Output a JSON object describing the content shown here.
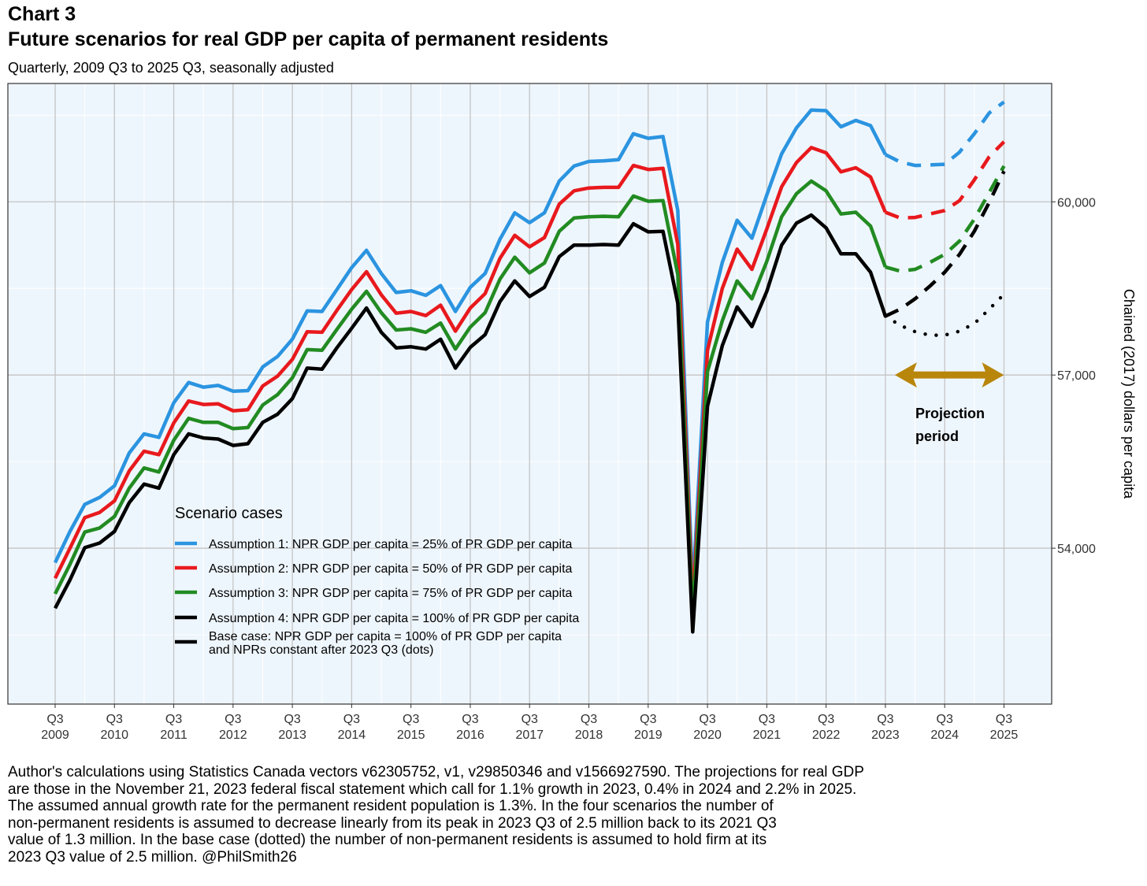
{
  "chart_label": "Chart 3",
  "title": "Future scenarios for real GDP per capita of permanent residents",
  "subtitle": "Quarterly, 2009 Q3 to 2025 Q3, seasonally adjusted",
  "caption": [
    "Author's calculations using Statistics Canada vectors v62305752, v1, v29850346 and v1566927590. The projections for real GDP",
    "are those in the November 21, 2023 federal fiscal statement which call for 1.1% growth in 2023, 0.4% in 2024 and 2.2% in 2025.",
    "The assumed annual growth rate for the permanent resident population is 1.3%. In the four scenarios the number of",
    "non-permanent residents is assumed to decrease linearly from its peak in 2023 Q3 of 2.5 million back to its 2021 Q3",
    "value of 1.3 million. In the base case (dotted) the number of non-permanent residents is assumed to hold firm at its",
    "2023 Q3 value of 2.5 million. @PhilSmith26"
  ],
  "chart_data": {
    "type": "line",
    "ylabel": "Chained (2017) dollars per capita",
    "x_ticks": [
      {
        "q": "Q3",
        "year": "2009"
      },
      {
        "q": "Q3",
        "year": "2010"
      },
      {
        "q": "Q3",
        "year": "2011"
      },
      {
        "q": "Q3",
        "year": "2012"
      },
      {
        "q": "Q3",
        "year": "2013"
      },
      {
        "q": "Q3",
        "year": "2014"
      },
      {
        "q": "Q3",
        "year": "2015"
      },
      {
        "q": "Q3",
        "year": "2016"
      },
      {
        "q": "Q3",
        "year": "2017"
      },
      {
        "q": "Q3",
        "year": "2018"
      },
      {
        "q": "Q3",
        "year": "2019"
      },
      {
        "q": "Q3",
        "year": "2020"
      },
      {
        "q": "Q3",
        "year": "2021"
      },
      {
        "q": "Q3",
        "year": "2022"
      },
      {
        "q": "Q3",
        "year": "2023"
      },
      {
        "q": "Q3",
        "year": "2024"
      },
      {
        "q": "Q3",
        "year": "2025"
      }
    ],
    "y_ticks": [
      54000,
      57000,
      60000
    ],
    "y_tick_labels": [
      "54,000",
      "57,000",
      "60,000"
    ],
    "ylim": [
      51300,
      62050
    ],
    "quarters_historical": [
      "2009 Q3",
      "2009 Q4",
      "2010 Q1",
      "2010 Q2",
      "2010 Q3",
      "2010 Q4",
      "2011 Q1",
      "2011 Q2",
      "2011 Q3",
      "2011 Q4",
      "2012 Q1",
      "2012 Q2",
      "2012 Q3",
      "2012 Q4",
      "2013 Q1",
      "2013 Q2",
      "2013 Q3",
      "2013 Q4",
      "2014 Q1",
      "2014 Q2",
      "2014 Q3",
      "2014 Q4",
      "2015 Q1",
      "2015 Q2",
      "2015 Q3",
      "2015 Q4",
      "2016 Q1",
      "2016 Q2",
      "2016 Q3",
      "2016 Q4",
      "2017 Q1",
      "2017 Q2",
      "2017 Q3",
      "2017 Q4",
      "2018 Q1",
      "2018 Q2",
      "2018 Q3",
      "2018 Q4",
      "2019 Q1",
      "2019 Q2",
      "2019 Q3",
      "2019 Q4",
      "2020 Q1",
      "2020 Q2",
      "2020 Q3",
      "2020 Q4",
      "2021 Q1",
      "2021 Q2",
      "2021 Q3",
      "2021 Q4",
      "2022 Q1",
      "2022 Q2",
      "2022 Q3",
      "2022 Q4",
      "2023 Q1",
      "2023 Q2",
      "2023 Q3"
    ],
    "quarters_projection": [
      "2023 Q3",
      "2023 Q4",
      "2024 Q1",
      "2024 Q2",
      "2024 Q3",
      "2024 Q4",
      "2025 Q1",
      "2025 Q2",
      "2025 Q3"
    ],
    "series": [
      {
        "name": "Assumption 1: NPR GDP per capita =  25% of PR GDP per capita",
        "color": "#2b94e0",
        "historical": [
          53750,
          54290,
          54760,
          54880,
          55080,
          55650,
          55980,
          55920,
          56520,
          56870,
          56790,
          56820,
          56720,
          56730,
          57140,
          57320,
          57620,
          58110,
          58100,
          58480,
          58860,
          59160,
          58760,
          58430,
          58460,
          58380,
          58550,
          58100,
          58520,
          58760,
          59350,
          59810,
          59640,
          59810,
          60360,
          60620,
          60700,
          60710,
          60730,
          61180,
          61100,
          61130,
          59850,
          53250,
          57920,
          58950,
          59680,
          59370,
          60120,
          60830,
          61280,
          61590,
          61580,
          61300,
          61410,
          61320,
          60820
        ],
        "projection": [
          60820,
          60690,
          60630,
          60640,
          60650,
          60860,
          61180,
          61540,
          61730
        ],
        "style": "dashed"
      },
      {
        "name": "Assumption 2: NPR GDP per capita =  50% of PR GDP per capita",
        "color": "#e8191d",
        "historical": [
          53480,
          54000,
          54530,
          54620,
          54820,
          55340,
          55680,
          55620,
          56170,
          56550,
          56490,
          56500,
          56380,
          56400,
          56810,
          56980,
          57270,
          57750,
          57740,
          58120,
          58480,
          58790,
          58390,
          58070,
          58100,
          58030,
          58210,
          57760,
          58160,
          58410,
          59020,
          59420,
          59220,
          59380,
          59960,
          60190,
          60240,
          60250,
          60250,
          60630,
          60560,
          60580,
          59260,
          53010,
          57430,
          58500,
          59180,
          58830,
          59530,
          60260,
          60680,
          60940,
          60850,
          60520,
          60590,
          60430,
          59820
        ],
        "projection": [
          59820,
          59720,
          59730,
          59790,
          59850,
          60020,
          60380,
          60780,
          61040
        ],
        "style": "dashed"
      },
      {
        "name": "Assumption 3: NPR GDP per capita =  75% of PR GDP per capita",
        "color": "#228b22",
        "historical": [
          53210,
          53720,
          54280,
          54350,
          54550,
          55040,
          55390,
          55320,
          55870,
          56250,
          56180,
          56180,
          56070,
          56090,
          56480,
          56660,
          56950,
          57440,
          57430,
          57790,
          58140,
          58450,
          58080,
          57780,
          57800,
          57740,
          57900,
          57450,
          57830,
          58080,
          58660,
          59040,
          58770,
          58940,
          59490,
          59720,
          59740,
          59750,
          59740,
          60100,
          60010,
          60020,
          58740,
          52800,
          57060,
          57940,
          58630,
          58320,
          58970,
          59740,
          60140,
          60360,
          60190,
          59790,
          59820,
          59580,
          58870
        ],
        "projection": [
          58870,
          58800,
          58830,
          58950,
          59090,
          59320,
          59700,
          60160,
          60620
        ],
        "style": "dashed"
      },
      {
        "name": "Assumption 4: NPR GDP per capita = 100% of PR GDP per capita",
        "color": "#000000",
        "historical": [
          52960,
          53450,
          54010,
          54090,
          54290,
          54790,
          55110,
          55040,
          55620,
          55980,
          55910,
          55890,
          55780,
          55810,
          56180,
          56320,
          56590,
          57120,
          57100,
          57470,
          57810,
          58160,
          57740,
          57470,
          57490,
          57450,
          57620,
          57120,
          57480,
          57700,
          58270,
          58630,
          58360,
          58520,
          59050,
          59250,
          59250,
          59260,
          59250,
          59620,
          59480,
          59490,
          58240,
          52550,
          56460,
          57510,
          58180,
          57840,
          58450,
          59250,
          59630,
          59770,
          59550,
          59100,
          59100,
          58780,
          58020
        ],
        "projection": [
          58020,
          58140,
          58320,
          58540,
          58780,
          59090,
          59490,
          59990,
          60530
        ],
        "style": "dashed"
      },
      {
        "name": "Base case: NPR GDP per capita = 100% of PR GDP per capita\nand NPRs constant after 2023 Q3 (dots)",
        "color": "#000000",
        "historical": [],
        "projection": [
          58020,
          57860,
          57750,
          57690,
          57690,
          57760,
          57890,
          58140,
          58400
        ],
        "style": "dotted"
      }
    ],
    "legend": {
      "title": "Scenario cases",
      "placement": "inside-bottom-left"
    },
    "annotation": {
      "text_line1": "Projection",
      "text_line2": "period",
      "arrow_color": "#b8860b",
      "arrow_from": "2023 Q3",
      "arrow_to": "2025 Q3",
      "arrow_y": 57000
    },
    "grid": true,
    "background": "#eef6fd"
  }
}
